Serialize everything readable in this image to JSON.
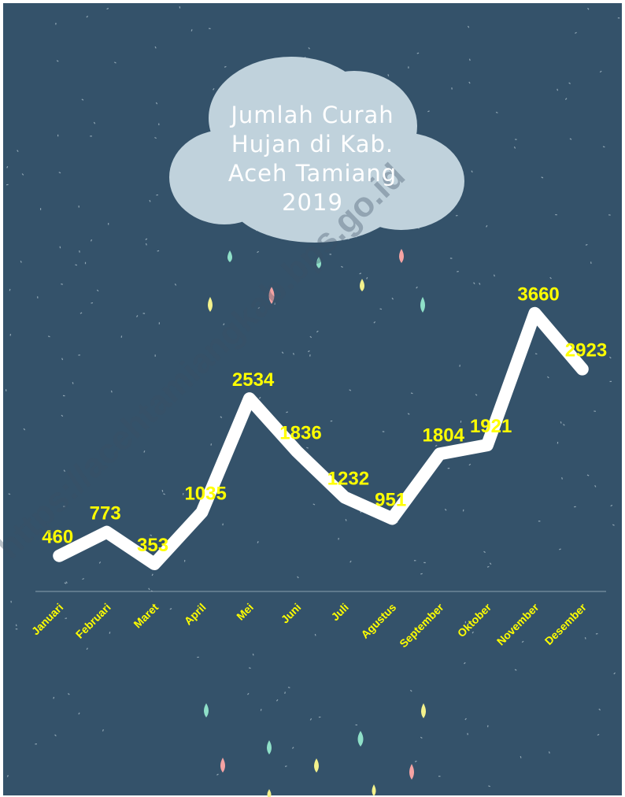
{
  "chart_data": {
    "type": "line",
    "title": "Jumlah Curah Hujan di Kab. Aceh Tamiang 2019",
    "watermark": "https://acehtamiangkab.bps.go.id",
    "categories": [
      "Januari",
      "Februari",
      "Maret",
      "April",
      "Mei",
      "Juni",
      "Juli",
      "Agustus",
      "September",
      "Oktober",
      "November",
      "Desember"
    ],
    "values": [
      460,
      773,
      353,
      1035,
      2534,
      1836,
      1232,
      951,
      1804,
      1921,
      3660,
      2923
    ],
    "color": "#ffffff",
    "label_color": "#ffff00",
    "ylim": [
      0,
      4000
    ]
  }
}
